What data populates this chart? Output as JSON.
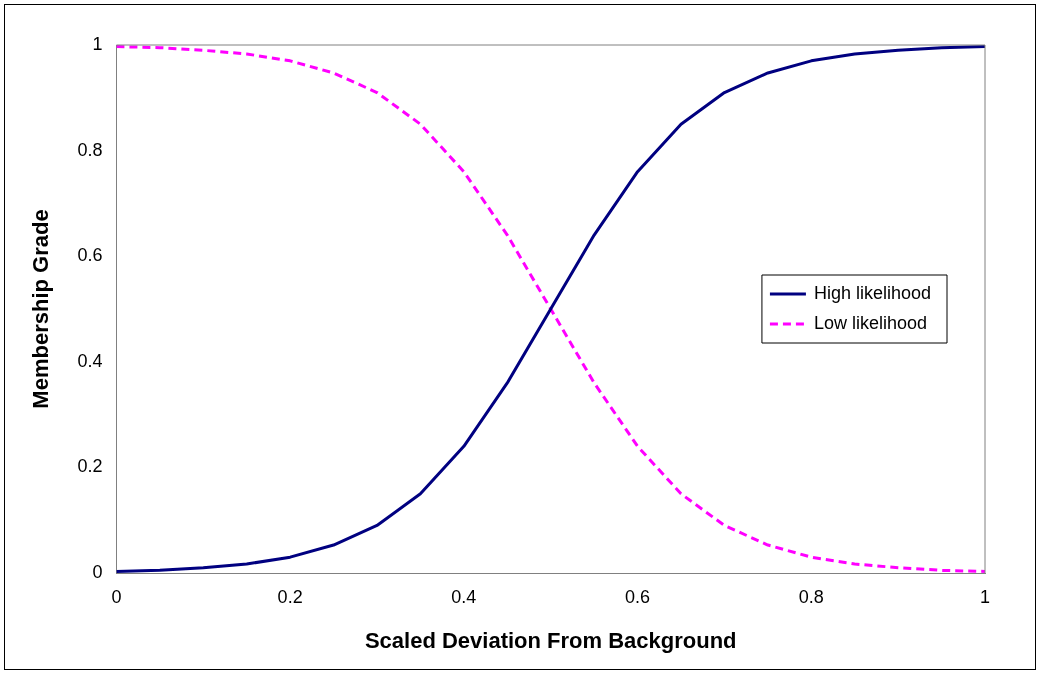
{
  "chart_data": {
    "type": "line",
    "xlabel": "Scaled Deviation From Background",
    "ylabel": "Membership Grade",
    "x": [
      0,
      0.05,
      0.1,
      0.15,
      0.2,
      0.25,
      0.3,
      0.35,
      0.4,
      0.45,
      0.5,
      0.55,
      0.6,
      0.65,
      0.7,
      0.75,
      0.8,
      0.85,
      0.9,
      0.95,
      1
    ],
    "series": [
      {
        "name": "High likelihood",
        "color": "#000080",
        "line_style": "solid",
        "values": [
          0.003,
          0.005,
          0.01,
          0.017,
          0.03,
          0.053,
          0.09,
          0.15,
          0.24,
          0.36,
          0.5,
          0.64,
          0.76,
          0.85,
          0.91,
          0.947,
          0.97,
          0.983,
          0.99,
          0.995,
          0.997
        ]
      },
      {
        "name": "Low likelihood",
        "color": "#ff00ff",
        "line_style": "dashed",
        "values": [
          0.997,
          0.995,
          0.99,
          0.983,
          0.97,
          0.947,
          0.91,
          0.85,
          0.76,
          0.64,
          0.5,
          0.36,
          0.24,
          0.15,
          0.09,
          0.053,
          0.03,
          0.017,
          0.01,
          0.005,
          0.003
        ]
      }
    ],
    "xlim": [
      0,
      1
    ],
    "xticks": [
      0,
      0.2,
      0.4,
      0.6,
      0.8,
      1
    ],
    "ylim": [
      0,
      1
    ],
    "yticks": [
      0,
      0.2,
      0.4,
      0.6,
      0.8,
      1
    ],
    "grid": false,
    "legend": "right",
    "marker": "none"
  }
}
